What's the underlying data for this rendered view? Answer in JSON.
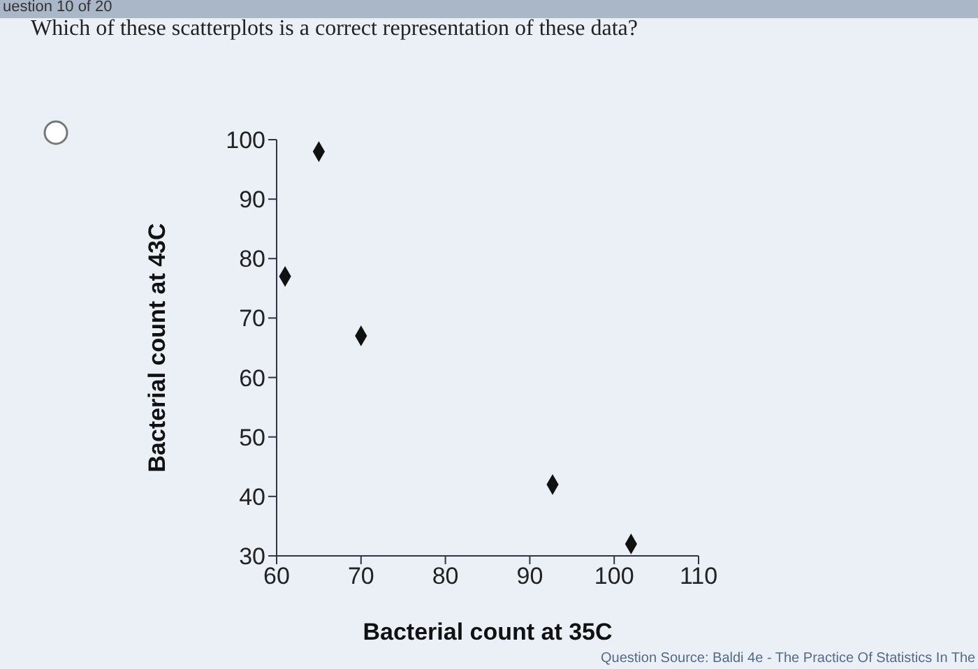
{
  "chart_data": {
    "type": "scatter",
    "title": "Which of these scatterplots is a correct representation of these data?",
    "xlabel": "Bacterial count at 35C",
    "ylabel": "Bacterial count at 43C",
    "x": [
      65,
      61,
      70,
      92.7,
      102
    ],
    "series": [
      {
        "color": "#111111",
        "values": [
          98,
          77,
          67,
          42,
          32
        ]
      }
    ],
    "xlim": [
      60,
      110
    ],
    "xticks": [
      60,
      70,
      80,
      90,
      100,
      110
    ],
    "ylim": [
      30,
      100
    ],
    "yticks": [
      30,
      40,
      50,
      60,
      70,
      80,
      90,
      100
    ],
    "marker": "diamond",
    "grid": false,
    "legend": false,
    "annotations": [
      "uestion 10 of 20",
      "Question Source: Baldi 4e - The Practice Of Statistics In The"
    ]
  }
}
